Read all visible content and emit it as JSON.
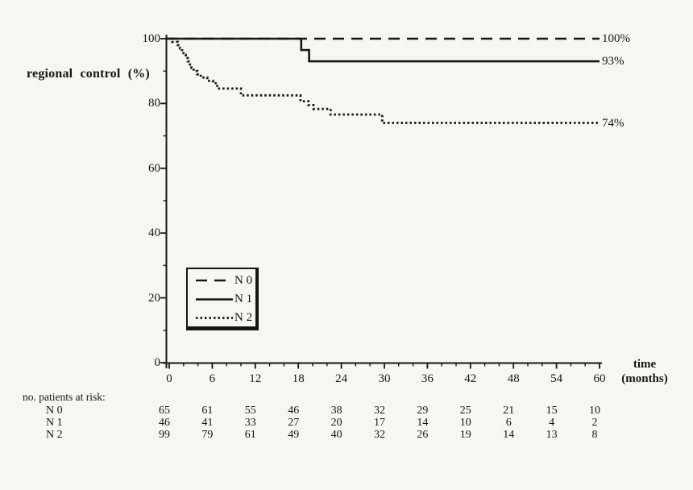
{
  "page": {
    "background": "#f6f6f5",
    "ink": "#161616"
  },
  "chart_data": {
    "type": "line",
    "subtype": "kaplan-meier_step",
    "title": "",
    "ylabel": "regional control (%)",
    "xlabel_lines": [
      "time",
      "(months)"
    ],
    "xlim": [
      0,
      60
    ],
    "ylim": [
      0,
      100
    ],
    "x_major_ticks": [
      0,
      6,
      12,
      18,
      24,
      30,
      36,
      42,
      48,
      54,
      60
    ],
    "x_minor_tick_step": 2,
    "y_major_ticks": [
      100,
      80,
      60,
      40,
      20,
      0
    ],
    "y_minor_tick_step": 10,
    "grid": false,
    "legend_position": "inside-lower-left",
    "series": [
      {
        "name": "N 0",
        "style": "dashed",
        "final_label": "100%",
        "final_value": 100,
        "steps": [
          [
            0,
            100
          ],
          [
            60,
            100
          ]
        ]
      },
      {
        "name": "N 1",
        "style": "solid",
        "final_label": "93%",
        "final_value": 93,
        "steps": [
          [
            0,
            100
          ],
          [
            18.4,
            96.5
          ],
          [
            19.5,
            93
          ],
          [
            60,
            93
          ]
        ]
      },
      {
        "name": "N 2",
        "style": "dotted",
        "final_label": "74%",
        "final_value": 74,
        "steps": [
          [
            0,
            100
          ],
          [
            0.4,
            99
          ],
          [
            1.2,
            98
          ],
          [
            1.5,
            97
          ],
          [
            1.8,
            96
          ],
          [
            2.0,
            95
          ],
          [
            2.3,
            94
          ],
          [
            2.6,
            93
          ],
          [
            2.9,
            92
          ],
          [
            3.1,
            91
          ],
          [
            3.4,
            90
          ],
          [
            3.9,
            89
          ],
          [
            4.4,
            88
          ],
          [
            5.3,
            87
          ],
          [
            6.1,
            86.3
          ],
          [
            6.7,
            84.6
          ],
          [
            10,
            82.5
          ],
          [
            18.3,
            80.7
          ],
          [
            19.4,
            79.5
          ],
          [
            20.1,
            78.3
          ],
          [
            22.5,
            76.6
          ],
          [
            29.7,
            74
          ],
          [
            60,
            74
          ]
        ]
      }
    ],
    "at_risk": {
      "label": "no. patients at risk:",
      "times": [
        0,
        6,
        12,
        18,
        24,
        30,
        36,
        42,
        48,
        54,
        60
      ],
      "rows": [
        {
          "name": "N 0",
          "values": [
            65,
            61,
            55,
            46,
            38,
            32,
            29,
            25,
            21,
            15,
            10
          ]
        },
        {
          "name": "N 1",
          "values": [
            46,
            41,
            33,
            27,
            20,
            17,
            14,
            10,
            6,
            4,
            2
          ]
        },
        {
          "name": "N 2",
          "values": [
            99,
            79,
            61,
            49,
            40,
            32,
            26,
            19,
            14,
            13,
            8
          ]
        }
      ]
    }
  }
}
